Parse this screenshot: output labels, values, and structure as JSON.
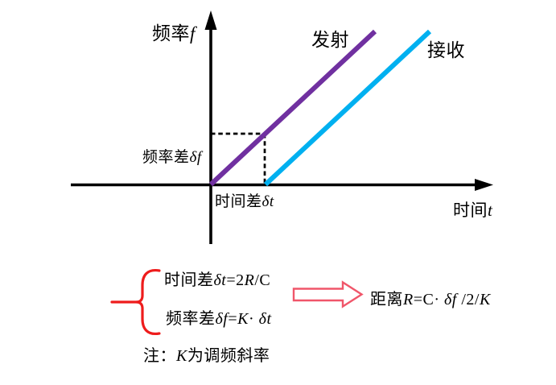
{
  "colors": {
    "axis": "#000000",
    "transmit_line": "#7030A0",
    "receive_line": "#00B0F0",
    "dashed": "#000000",
    "brace": "#EE1C1C",
    "block_arrow": "#F0566A"
  },
  "plot": {
    "y_axis_label": [
      {
        "t": "频率",
        "s": "cn"
      },
      {
        "t": "f",
        "s": "it"
      }
    ],
    "x_axis_label": [
      {
        "t": "时间",
        "s": "cn"
      },
      {
        "t": "t",
        "s": "it"
      }
    ],
    "transmit_label": "发射",
    "receive_label": "接收",
    "freq_diff_label": [
      {
        "t": "频率差",
        "s": "cn"
      },
      {
        "t": "δf",
        "s": "it"
      }
    ],
    "time_diff_label": [
      {
        "t": "时间差",
        "s": "cn"
      },
      {
        "t": "δt",
        "s": "it"
      }
    ]
  },
  "formulas": {
    "time_diff": [
      {
        "t": "时间差",
        "s": "cn"
      },
      {
        "t": "δt",
        "s": "it"
      },
      {
        "t": "=2",
        "s": "up"
      },
      {
        "t": "R",
        "s": "it"
      },
      {
        "t": "/C",
        "s": "up"
      }
    ],
    "freq_diff": [
      {
        "t": "频率差",
        "s": "cn"
      },
      {
        "t": "δf",
        "s": "it"
      },
      {
        "t": "=",
        "s": "up"
      },
      {
        "t": "K",
        "s": "it"
      },
      {
        "t": "· ",
        "s": "up"
      },
      {
        "t": "δt",
        "s": "it"
      }
    ],
    "note": [
      {
        "t": "注：",
        "s": "cn"
      },
      {
        "t": "K",
        "s": "it"
      },
      {
        "t": "为调频斜率",
        "s": "cn"
      }
    ],
    "distance": [
      {
        "t": "距离",
        "s": "cn"
      },
      {
        "t": "R",
        "s": "it"
      },
      {
        "t": "=C· ",
        "s": "up"
      },
      {
        "t": "δf",
        "s": "it"
      },
      {
        "t": " /2/",
        "s": "up"
      },
      {
        "t": "K",
        "s": "it"
      }
    ]
  }
}
